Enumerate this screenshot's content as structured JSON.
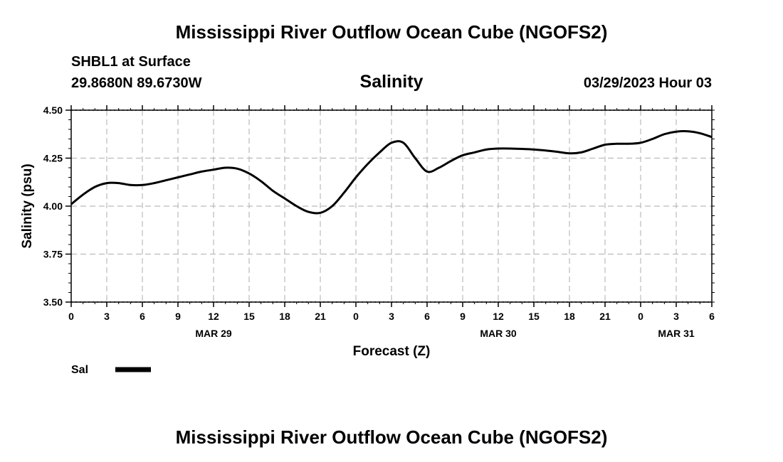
{
  "page": {
    "title_top": "Mississippi River Outflow Ocean Cube (NGOFS2)",
    "station": "SHBL1 at Surface",
    "coords": "29.8680N  89.6730W",
    "variable": "Salinity",
    "date_label": "03/29/2023 Hour 03",
    "title_bottom": "Mississippi River Outflow Ocean Cube (NGOFS2)"
  },
  "chart_data": {
    "type": "line",
    "xlabel": "Forecast (Z)",
    "ylabel": "Salinity (psu)",
    "xlim": [
      0,
      54
    ],
    "ylim": [
      3.5,
      4.5
    ],
    "grid": true,
    "x_ticks": [
      0,
      3,
      6,
      9,
      12,
      15,
      18,
      21,
      24,
      27,
      30,
      33,
      36,
      39,
      42,
      45,
      48,
      51,
      54
    ],
    "x_tick_labels": [
      "0",
      "3",
      "6",
      "9",
      "12",
      "15",
      "18",
      "21",
      "0",
      "3",
      "6",
      "9",
      "12",
      "15",
      "18",
      "21",
      "0",
      "3",
      "6"
    ],
    "y_ticks": [
      3.5,
      3.75,
      4.0,
      4.25,
      4.5
    ],
    "y_tick_labels": [
      "3.50",
      "3.75",
      "4.00",
      "4.25",
      "4.50"
    ],
    "day_labels": [
      {
        "x": 12,
        "label": "MAR 29"
      },
      {
        "x": 36,
        "label": "MAR 30"
      },
      {
        "x": 51,
        "label": "MAR 31"
      }
    ],
    "legend": {
      "placement": "bottom-left",
      "entries": [
        "Sal"
      ]
    },
    "series": [
      {
        "name": "Sal",
        "x": [
          0,
          1,
          2,
          3,
          4,
          5,
          6,
          7,
          8,
          9,
          10,
          11,
          12,
          13,
          14,
          15,
          16,
          17,
          18,
          19,
          20,
          21,
          22,
          23,
          24,
          25,
          26,
          27,
          28,
          29,
          30,
          31,
          32,
          33,
          34,
          35,
          36,
          37,
          38,
          39,
          40,
          41,
          42,
          43,
          44,
          45,
          46,
          47,
          48,
          49,
          50,
          51,
          52,
          53,
          54
        ],
        "y": [
          4.01,
          4.06,
          4.1,
          4.12,
          4.12,
          4.11,
          4.11,
          4.12,
          4.135,
          4.15,
          4.165,
          4.18,
          4.19,
          4.2,
          4.195,
          4.17,
          4.13,
          4.08,
          4.04,
          4.0,
          3.97,
          3.965,
          4.0,
          4.07,
          4.15,
          4.22,
          4.28,
          4.33,
          4.33,
          4.25,
          4.18,
          4.2,
          4.235,
          4.265,
          4.28,
          4.295,
          4.3,
          4.3,
          4.298,
          4.295,
          4.29,
          4.283,
          4.275,
          4.28,
          4.3,
          4.32,
          4.325,
          4.325,
          4.33,
          4.35,
          4.375,
          4.388,
          4.39,
          4.38,
          4.36
        ]
      }
    ]
  }
}
